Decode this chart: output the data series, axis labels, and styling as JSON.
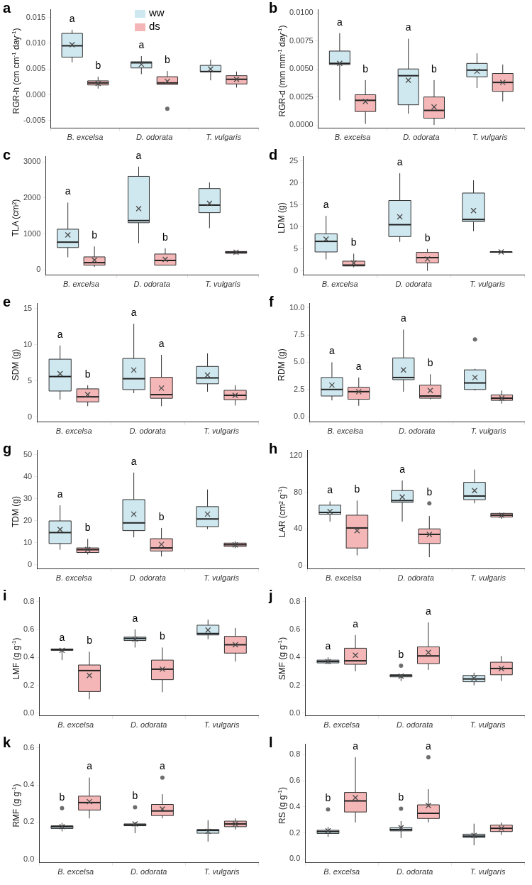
{
  "chart_data": [
    {
      "type": "box",
      "title": "a",
      "ylabel": "RGR-h (cm cm$^{-1}$ day$^{-1}$)",
      "categories": [
        "B. excelsa",
        "D. odorata",
        "T. vulgaris"
      ],
      "ylim": [
        -0.0065,
        0.0165
      ],
      "yticks": [
        -0.005,
        {
          "value": 0,
          "label": "0.000"
        },
        0.005,
        {
          "value": 0.01,
          "label": "0.010"
        },
        0.015
      ],
      "legend": "top",
      "series": [
        {
          "name": "ww",
          "color": "#cfe8f0",
          "boxes": [
            {
              "low": 0.0063,
              "q1": 0.0073,
              "median": 0.0095,
              "q3": 0.0119,
              "high": 0.0126,
              "mean": 0.0097
            },
            {
              "low": 0.004,
              "q1": 0.0052,
              "median": 0.0062,
              "q3": 0.0064,
              "high": 0.0075,
              "mean": 0.0059
            },
            {
              "low": 0.0028,
              "q1": 0.0045,
              "median": 0.0045,
              "q3": 0.0057,
              "high": 0.0068,
              "mean": 0.005
            }
          ]
        },
        {
          "name": "ds",
          "color": "#f4b6b6",
          "boxes": [
            {
              "low": 0.0012,
              "q1": 0.0019,
              "median": 0.0023,
              "q3": 0.0027,
              "high": 0.0035,
              "mean": 0.0022
            },
            {
              "low": 0.002,
              "q1": 0.002,
              "median": 0.0023,
              "q3": 0.0035,
              "high": 0.0046,
              "mean": 0.0026,
              "outliers": [
                -0.0027
              ]
            },
            {
              "low": 0.0014,
              "q1": 0.0021,
              "median": 0.003,
              "q3": 0.0037,
              "high": 0.0045,
              "mean": 0.003
            }
          ]
        }
      ],
      "annotations": [
        "a",
        "b",
        "a",
        "b"
      ]
    },
    {
      "type": "box",
      "title": "b",
      "ylabel": "RGR-d (mm mm$^{-1}$ day$^{-1}$)",
      "categories": [
        "B. excelsa",
        "D. odorata",
        "T. vulgaris"
      ],
      "ylim": [
        -0.0003,
        0.0103
      ],
      "yticks": [
        {
          "value": 0,
          "label": "0.0000"
        },
        0.0025,
        {
          "value": 0.005,
          "label": "0.0050"
        },
        0.0075,
        {
          "value": 0.01,
          "label": "0.0100"
        }
      ],
      "series": [
        {
          "color": "#cfe8f0",
          "boxes": [
            {
              "low": 0.0022,
              "q1": 0.0054,
              "median": 0.0055,
              "q3": 0.0066,
              "high": 0.0082,
              "mean": 0.0055
            },
            {
              "low": 0.001,
              "q1": 0.0018,
              "median": 0.0044,
              "q3": 0.005,
              "high": 0.0077,
              "mean": 0.004
            },
            {
              "low": 0.0033,
              "q1": 0.0043,
              "median": 0.0049,
              "q3": 0.0055,
              "high": 0.0064,
              "mean": 0.0048
            }
          ]
        },
        {
          "color": "#f4b6b6",
          "boxes": [
            {
              "low": 0.0001,
              "q1": 0.0012,
              "median": 0.0022,
              "q3": 0.0027,
              "high": 0.004,
              "mean": 0.0021
            },
            {
              "low": 0,
              "q1": 0.0006,
              "median": 0.0013,
              "q3": 0.0025,
              "high": 0.004,
              "mean": 0.0016
            },
            {
              "low": 0.0021,
              "q1": 0.003,
              "median": 0.0038,
              "q3": 0.0046,
              "high": 0.0054,
              "mean": 0.0038
            }
          ]
        }
      ],
      "annotations": [
        "a",
        "b",
        "a",
        "b"
      ]
    },
    {
      "type": "box",
      "title": "c",
      "ylabel": "TLA (cm²)",
      "categories": [
        "B. excelsa",
        "D. odorata",
        "T. vulgaris"
      ],
      "ylim": [
        -150,
        3150
      ],
      "yticks": [
        0,
        1000,
        2000,
        3000
      ],
      "series": [
        {
          "color": "#cfe8f0",
          "boxes": [
            {
              "low": 350,
              "q1": 620,
              "median": 770,
              "q3": 1130,
              "high": 1870,
              "mean": 970
            },
            {
              "low": 740,
              "q1": 1310,
              "median": 1370,
              "q3": 2600,
              "high": 2870,
              "mean": 1700
            },
            {
              "low": 1160,
              "q1": 1590,
              "median": 1800,
              "q3": 2260,
              "high": 2430,
              "mean": 1850
            }
          ]
        },
        {
          "color": "#f4b6b6",
          "boxes": [
            {
              "low": 80,
              "q1": 130,
              "median": 200,
              "q3": 360,
              "high": 650,
              "mean": 270
            },
            {
              "low": 130,
              "q1": 130,
              "median": 260,
              "q3": 440,
              "high": 600,
              "mean": 290
            },
            {
              "low": 430,
              "q1": 460,
              "median": 490,
              "q3": 510,
              "high": 540,
              "mean": 490
            }
          ]
        }
      ],
      "annotations": [
        "a",
        "b",
        "a",
        "b"
      ]
    },
    {
      "type": "box",
      "title": "d",
      "ylabel": "LDM (g)",
      "categories": [
        "B. excelsa",
        "D. odorata",
        "T. vulgaris"
      ],
      "ylim": [
        -1,
        26
      ],
      "yticks": [
        0,
        5,
        10,
        15,
        20,
        25
      ],
      "series": [
        {
          "color": "#cfe8f0",
          "boxes": [
            {
              "low": 2.6,
              "q1": 4.3,
              "median": 6.7,
              "q3": 8.4,
              "high": 12.5,
              "mean": 7.2
            },
            {
              "low": 6.6,
              "q1": 7.8,
              "median": 10.5,
              "q3": 16,
              "high": 22.2,
              "mean": 12.3
            },
            {
              "low": 9,
              "q1": 11.2,
              "median": 11.7,
              "q3": 17.7,
              "high": 20.6,
              "mean": 13.7
            }
          ]
        },
        {
          "color": "#f4b6b6",
          "boxes": [
            {
              "low": 0.8,
              "q1": 1.1,
              "median": 1.3,
              "q3": 2.2,
              "high": 3.9,
              "mean": 1.8
            },
            {
              "low": 0,
              "q1": 1.8,
              "median": 3,
              "q3": 4.2,
              "high": 5,
              "mean": 2.7
            },
            {
              "low": 4.2,
              "q1": 4.2,
              "median": 4.3,
              "q3": 4.3,
              "high": 4.3,
              "mean": 4.3
            }
          ]
        }
      ],
      "annotations": [
        "a",
        "b",
        "a",
        "b"
      ]
    },
    {
      "type": "box",
      "title": "e",
      "ylabel": "SDM (g)",
      "categories": [
        "B. excelsa",
        "D. odorata",
        "T. vulgaris"
      ],
      "ylim": [
        -0.7,
        15.7
      ],
      "yticks": [
        0,
        5,
        10,
        15
      ],
      "series": [
        {
          "color": "#cfe8f0",
          "boxes": [
            {
              "low": 2.4,
              "q1": 3.6,
              "median": 5.6,
              "q3": 8,
              "high": 9.9,
              "mean": 6
            },
            {
              "low": 3.3,
              "q1": 3.8,
              "median": 5.3,
              "q3": 8.1,
              "high": 12.9,
              "mean": 6.5
            },
            {
              "low": 3.5,
              "q1": 4.6,
              "median": 5.4,
              "q3": 7,
              "high": 8.8,
              "mean": 5.8
            }
          ]
        },
        {
          "color": "#f4b6b6",
          "boxes": [
            {
              "low": 1.5,
              "q1": 2.1,
              "median": 2.8,
              "q3": 3.9,
              "high": 4.4,
              "mean": 3.1
            },
            {
              "low": 1.5,
              "q1": 2.6,
              "median": 3.1,
              "q3": 5.5,
              "high": 8.6,
              "mean": 4
            },
            {
              "low": 1.6,
              "q1": 2.4,
              "median": 3,
              "q3": 3.7,
              "high": 4.4,
              "mean": 3
            }
          ]
        }
      ],
      "annotations": [
        "a",
        "b",
        "a",
        "a"
      ]
    },
    {
      "type": "box",
      "title": "f",
      "ylabel": "RDM (g)",
      "categories": [
        "B. excelsa",
        "D. odorata",
        "T. vulgaris"
      ],
      "ylim": [
        -0.5,
        10.4
      ],
      "yticks": [
        {
          "value": 0,
          "label": "0.0"
        },
        2.5,
        {
          "value": 5,
          "label": "5.0"
        },
        7.5,
        {
          "value": 10,
          "label": "10.0"
        }
      ],
      "series": [
        {
          "color": "#cfe8f0",
          "boxes": [
            {
              "low": 1.5,
              "q1": 1.9,
              "median": 2.5,
              "q3": 3.6,
              "high": 5,
              "mean": 2.9
            },
            {
              "low": 2.3,
              "q1": 3.4,
              "median": 3.6,
              "q3": 5.4,
              "high": 8,
              "mean": 4.3
            },
            {
              "low": 2.4,
              "q1": 2.5,
              "median": 3.1,
              "q3": 4.3,
              "high": 4.4,
              "mean": 3.6,
              "outliers": [
                7.1
              ]
            }
          ]
        },
        {
          "color": "#f4b6b6",
          "boxes": [
            {
              "low": 1,
              "q1": 1.6,
              "median": 2.3,
              "q3": 2.7,
              "high": 3.6,
              "mean": 2.3
            },
            {
              "low": 1.6,
              "q1": 1.7,
              "median": 1.9,
              "q3": 2.9,
              "high": 3.9,
              "mean": 2.4
            },
            {
              "low": 1.2,
              "q1": 1.5,
              "median": 1.7,
              "q3": 2,
              "high": 2.4,
              "mean": 1.7
            }
          ]
        }
      ],
      "annotations": [
        "a",
        "a",
        "a",
        "b"
      ]
    },
    {
      "type": "box",
      "title": "g",
      "ylabel": "TDM (g)",
      "categories": [
        "B. excelsa",
        "D. odorata",
        "T. vulgaris"
      ],
      "ylim": [
        -2,
        52
      ],
      "yticks": [
        0,
        10,
        20,
        30,
        40,
        50
      ],
      "series": [
        {
          "color": "#cfe8f0",
          "boxes": [
            {
              "low": 6.8,
              "q1": 9.6,
              "median": 14.6,
              "q3": 19.9,
              "high": 27,
              "mean": 16
            },
            {
              "low": 12.4,
              "q1": 15.5,
              "median": 19,
              "q3": 29.6,
              "high": 41.9,
              "mean": 23
            },
            {
              "low": 16.2,
              "q1": 17.3,
              "median": 20.8,
              "q3": 26.4,
              "high": 34.2,
              "mean": 23
            }
          ]
        },
        {
          "color": "#f4b6b6",
          "boxes": [
            {
              "low": 4.6,
              "q1": 5.5,
              "median": 6.8,
              "q3": 7.6,
              "high": 11.7,
              "mean": 6.9
            },
            {
              "low": 3.7,
              "q1": 6.2,
              "median": 7.6,
              "q3": 11.8,
              "high": 16.7,
              "mean": 9.2
            },
            {
              "low": 7.5,
              "q1": 8.3,
              "median": 9.1,
              "q3": 9.8,
              "high": 10.6,
              "mean": 9
            }
          ]
        }
      ],
      "annotations": [
        "a",
        "b",
        "a",
        "b"
      ]
    },
    {
      "type": "box",
      "title": "h",
      "ylabel": "LAR (cm² g$^{-1}$)",
      "categories": [
        "B. excelsa",
        "D. odorata",
        "T. vulgaris"
      ],
      "ylim": [
        -4,
        126
      ],
      "yticks": [
        0,
        40,
        80,
        120
      ],
      "series": [
        {
          "color": "#cfe8f0",
          "boxes": [
            {
              "low": 48,
              "q1": 56,
              "median": 58,
              "q3": 66,
              "high": 70,
              "mean": 59
            },
            {
              "low": 48,
              "q1": 69,
              "median": 71,
              "q3": 82,
              "high": 93,
              "mean": 75
            },
            {
              "low": 68,
              "q1": 72,
              "median": 76,
              "q3": 91,
              "high": 105,
              "mean": 82
            }
          ]
        },
        {
          "color": "#f4b6b6",
          "boxes": [
            {
              "low": 11,
              "q1": 19,
              "median": 41,
              "q3": 55,
              "high": 71,
              "mean": 38
            },
            {
              "low": 9,
              "q1": 24,
              "median": 34,
              "q3": 40,
              "high": 54,
              "mean": 34,
              "outliers": [
                68
              ]
            },
            {
              "low": 51,
              "q1": 53,
              "median": 55,
              "q3": 57,
              "high": 57,
              "mean": 55
            }
          ]
        }
      ],
      "annotations": [
        "a",
        "b",
        "a",
        "b"
      ]
    },
    {
      "type": "box",
      "title": "i",
      "ylabel": "LMF (g g$^{-1}$)",
      "categories": [
        "B. excelsa",
        "D. odorata",
        "T. vulgaris"
      ],
      "ylim": [
        -0.02,
        0.83
      ],
      "yticks": [
        {
          "value": 0,
          "label": "0.0"
        },
        {
          "value": 0.2,
          "label": "0.2"
        },
        {
          "value": 0.4,
          "label": "0.4"
        },
        {
          "value": 0.6,
          "label": "0.6"
        },
        {
          "value": 0.8,
          "label": "0.8"
        }
      ],
      "series": [
        {
          "color": "#cfe8f0",
          "boxes": [
            {
              "low": 0.38,
              "q1": 0.45,
              "median": 0.455,
              "q3": 0.46,
              "high": 0.46,
              "mean": 0.45
            },
            {
              "low": 0.47,
              "q1": 0.52,
              "median": 0.535,
              "q3": 0.545,
              "high": 0.6,
              "mean": 0.53
            },
            {
              "low": 0.53,
              "q1": 0.56,
              "median": 0.57,
              "q3": 0.63,
              "high": 0.67,
              "mean": 0.595
            }
          ]
        },
        {
          "color": "#f4b6b6",
          "boxes": [
            {
              "low": 0.1,
              "q1": 0.155,
              "median": 0.305,
              "q3": 0.345,
              "high": 0.44,
              "mean": 0.27
            },
            {
              "low": 0.15,
              "q1": 0.24,
              "median": 0.315,
              "q3": 0.38,
              "high": 0.47,
              "mean": 0.315
            },
            {
              "low": 0.37,
              "q1": 0.43,
              "median": 0.49,
              "q3": 0.55,
              "high": 0.61,
              "mean": 0.49
            }
          ]
        }
      ],
      "annotations": [
        "a",
        "b",
        "a",
        "b"
      ]
    },
    {
      "type": "box",
      "title": "j",
      "ylabel": "SMF (g g$^{-1}$)",
      "categories": [
        "B. excelsa",
        "D. odorata",
        "T. vulgaris"
      ],
      "ylim": [
        -0.02,
        0.83
      ],
      "yticks": [
        {
          "value": 0,
          "label": "0.0"
        },
        {
          "value": 0.2,
          "label": "0.2"
        },
        {
          "value": 0.4,
          "label": "0.4"
        },
        {
          "value": 0.6,
          "label": "0.6"
        },
        {
          "value": 0.8,
          "label": "0.8"
        }
      ],
      "series": [
        {
          "color": "#cfe8f0",
          "boxes": [
            {
              "low": 0.35,
              "q1": 0.36,
              "median": 0.37,
              "q3": 0.38,
              "high": 0.4,
              "mean": 0.37
            },
            {
              "low": 0.23,
              "q1": 0.26,
              "median": 0.27,
              "q3": 0.275,
              "high": 0.275,
              "mean": 0.265,
              "outliers": [
                0.34
              ]
            },
            {
              "low": 0.2,
              "q1": 0.225,
              "median": 0.245,
              "q3": 0.27,
              "high": 0.29,
              "mean": 0.25
            }
          ]
        },
        {
          "color": "#f4b6b6",
          "boxes": [
            {
              "low": 0.3,
              "q1": 0.35,
              "median": 0.375,
              "q3": 0.465,
              "high": 0.56,
              "mean": 0.415
            },
            {
              "low": 0.31,
              "q1": 0.355,
              "median": 0.41,
              "q3": 0.475,
              "high": 0.65,
              "mean": 0.435
            },
            {
              "low": 0.23,
              "q1": 0.275,
              "median": 0.32,
              "q3": 0.365,
              "high": 0.41,
              "mean": 0.32
            }
          ]
        }
      ],
      "annotations": [
        "a",
        "a",
        "b",
        "a"
      ]
    },
    {
      "type": "box",
      "title": "k",
      "ylabel": "RMF (g g$^{-1}$)",
      "categories": [
        "B. excelsa",
        "D. odorata",
        "T. vulgaris"
      ],
      "ylim": [
        -0.02,
        0.62
      ],
      "yticks": [
        {
          "value": 0,
          "label": "0.0"
        },
        {
          "value": 0.2,
          "label": "0.2"
        },
        {
          "value": 0.4,
          "label": "0.4"
        },
        {
          "value": 0.6,
          "label": "0.6"
        }
      ],
      "series": [
        {
          "color": "#cfe8f0",
          "boxes": [
            {
              "low": 0.15,
              "q1": 0.165,
              "median": 0.175,
              "q3": 0.18,
              "high": 0.195,
              "mean": 0.175,
              "outliers": [
                0.275
              ]
            },
            {
              "low": 0.14,
              "q1": 0.18,
              "median": 0.185,
              "q3": 0.19,
              "high": 0.2,
              "mean": 0.19,
              "outliers": [
                0.28
              ]
            },
            {
              "low": 0.095,
              "q1": 0.14,
              "median": 0.155,
              "q3": 0.16,
              "high": 0.21,
              "mean": 0.15
            }
          ]
        },
        {
          "color": "#f4b6b6",
          "boxes": [
            {
              "low": 0.22,
              "q1": 0.265,
              "median": 0.305,
              "q3": 0.34,
              "high": 0.44,
              "mean": 0.31
            },
            {
              "low": 0.22,
              "q1": 0.235,
              "median": 0.26,
              "q3": 0.295,
              "high": 0.35,
              "mean": 0.27,
              "outliers": [
                0.44
              ]
            },
            {
              "low": 0.16,
              "q1": 0.175,
              "median": 0.19,
              "q3": 0.205,
              "high": 0.22,
              "mean": 0.19
            }
          ]
        }
      ],
      "annotations": [
        "b",
        "a",
        "b",
        "a"
      ]
    },
    {
      "type": "box",
      "title": "l",
      "ylabel": "RS (g g$^{-1}$)",
      "categories": [
        "B. excelsa",
        "D. odorata",
        "T. vulgaris"
      ],
      "ylim": [
        -0.03,
        0.88
      ],
      "yticks": [
        {
          "value": 0,
          "label": "0.0"
        },
        {
          "value": 0.2,
          "label": "0.2"
        },
        {
          "value": 0.4,
          "label": "0.4"
        },
        {
          "value": 0.6,
          "label": "0.6"
        },
        {
          "value": 0.8,
          "label": "0.8"
        }
      ],
      "series": [
        {
          "color": "#cfe8f0",
          "boxes": [
            {
              "low": 0.17,
              "q1": 0.195,
              "median": 0.21,
              "q3": 0.22,
              "high": 0.245,
              "mean": 0.215,
              "outliers": [
                0.38
              ]
            },
            {
              "low": 0.16,
              "q1": 0.215,
              "median": 0.225,
              "q3": 0.24,
              "high": 0.29,
              "mean": 0.24,
              "outliers": [
                0.385
              ]
            },
            {
              "low": 0.105,
              "q1": 0.165,
              "median": 0.175,
              "q3": 0.19,
              "high": 0.27,
              "mean": 0.18
            }
          ]
        },
        {
          "color": "#f4b6b6",
          "boxes": [
            {
              "low": 0.28,
              "q1": 0.36,
              "median": 0.445,
              "q3": 0.51,
              "high": 0.78,
              "mean": 0.47
            },
            {
              "low": 0.28,
              "q1": 0.31,
              "median": 0.35,
              "q3": 0.415,
              "high": 0.535,
              "mean": 0.41,
              "outliers": [
                0.78
              ]
            },
            {
              "low": 0.185,
              "q1": 0.21,
              "median": 0.235,
              "q3": 0.26,
              "high": 0.28,
              "mean": 0.235
            }
          ]
        }
      ],
      "annotations": [
        "b",
        "a",
        "b",
        "a"
      ]
    }
  ]
}
